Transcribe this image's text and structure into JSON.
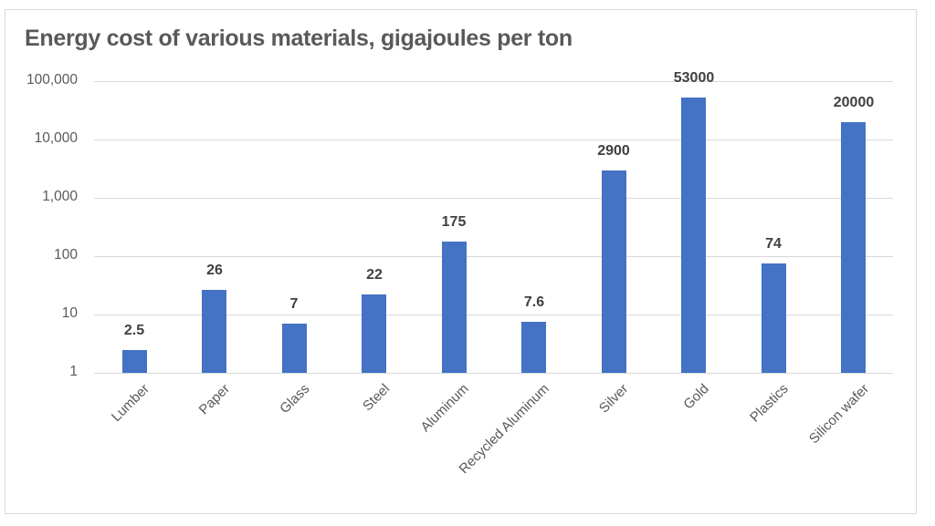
{
  "chart_data": {
    "type": "bar",
    "title": "Energy cost of various materials, gigajoules per ton",
    "xlabel": "",
    "ylabel": "",
    "yscale": "log",
    "ylim": [
      1,
      100000
    ],
    "grid": true,
    "legend": null,
    "categories": [
      "Lumber",
      "Paper",
      "Glass",
      "Steel",
      "Aluminum",
      "Recycled Aluminum",
      "Silver",
      "Gold",
      "Plastics",
      "Silicon wafer"
    ],
    "values": [
      2.5,
      26,
      7,
      22,
      175,
      7.6,
      2900,
      53000,
      74,
      20000
    ],
    "data_labels": [
      "2.5",
      "26",
      "7",
      "22",
      "175",
      "7.6",
      "2900",
      "53000",
      "74",
      "20000"
    ],
    "yticks": [
      1,
      10,
      100,
      1000,
      10000,
      100000
    ],
    "ytick_labels": [
      "1",
      "10",
      "100",
      "1,000",
      "10,000",
      "100,000"
    ],
    "bar_color": "#4472c4"
  }
}
